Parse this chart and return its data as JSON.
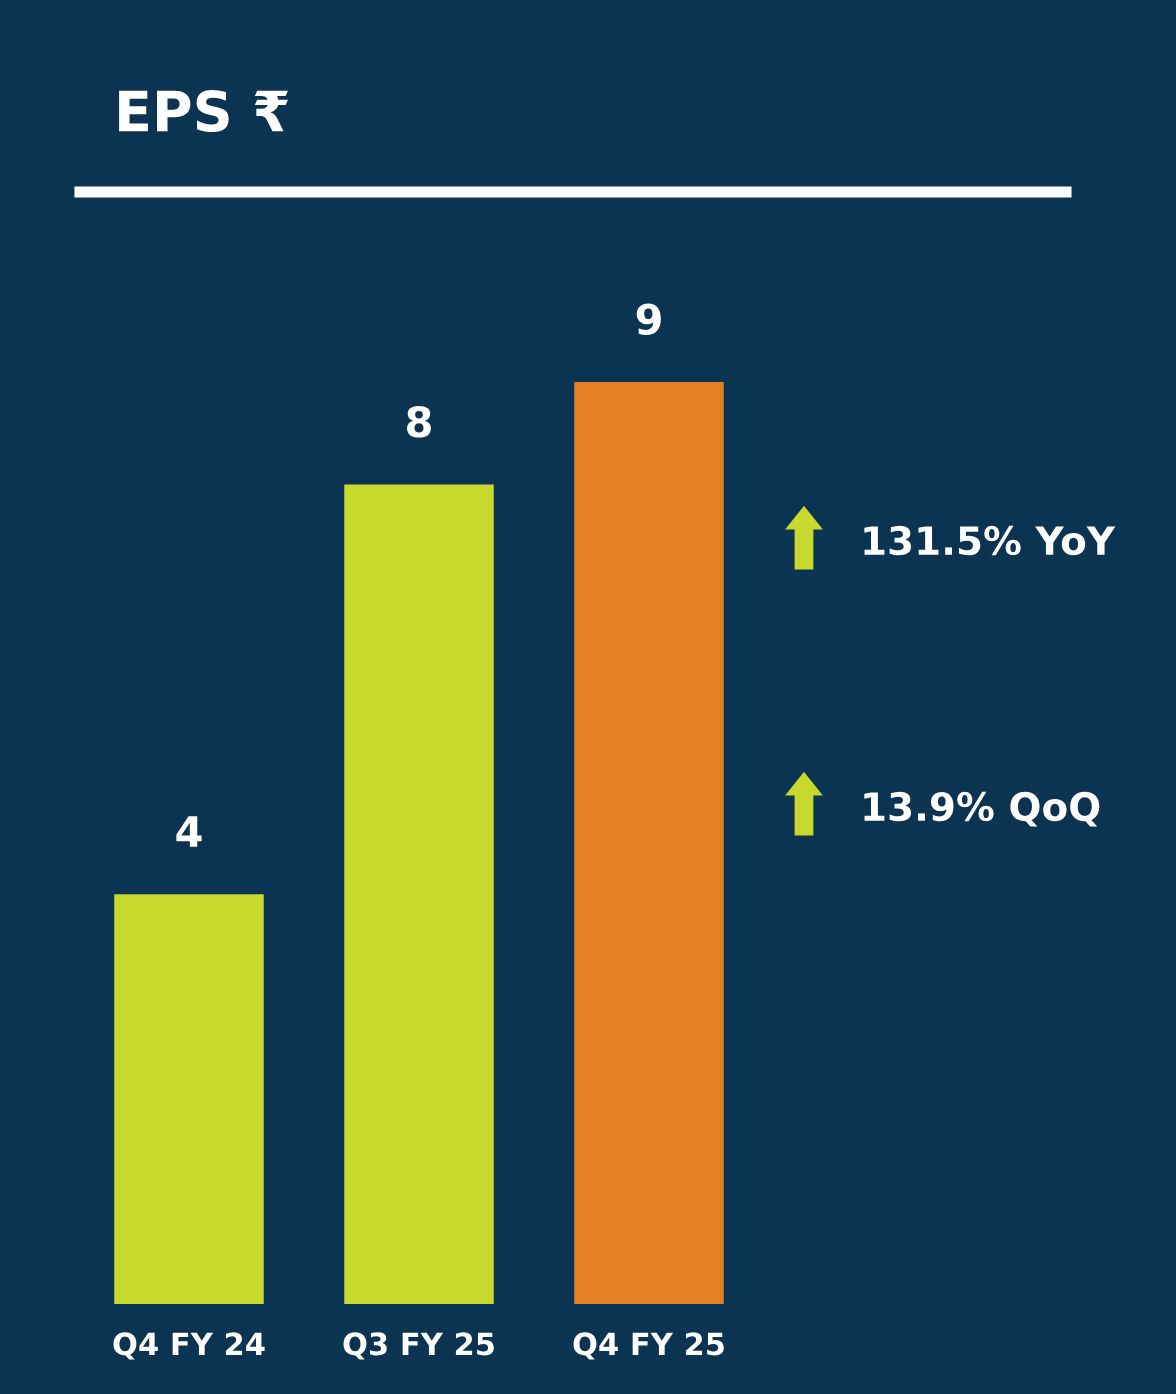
{
  "chart_data": {
    "type": "bar",
    "title": "EPS ₹",
    "categories": [
      "Q4 FY 24",
      "Q3 FY 25",
      "Q4 FY 25"
    ],
    "values": [
      4,
      8,
      9
    ],
    "colors": [
      "#c8d92e",
      "#c8d92e",
      "#e57f24"
    ],
    "data_labels": true,
    "annotations": [
      "131.5% YoY",
      "13.9% QoQ"
    ],
    "grid": false,
    "legend": false
  }
}
